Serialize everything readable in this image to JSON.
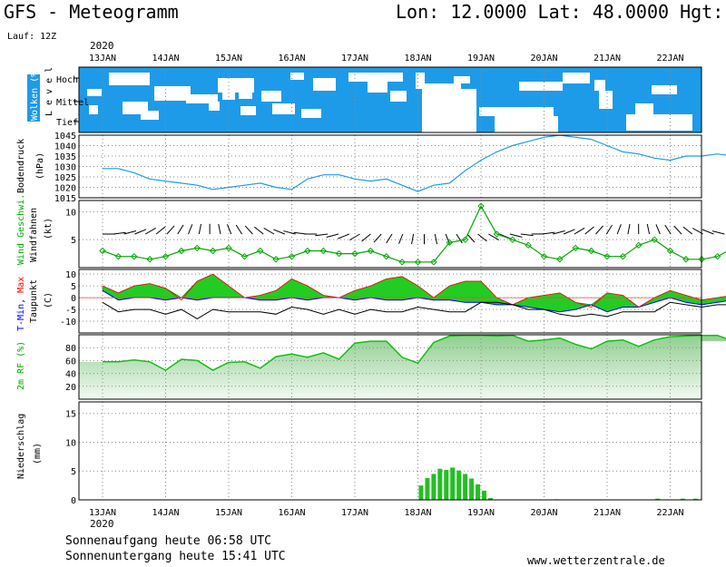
{
  "header": {
    "title": "GFS - Meteogramm",
    "location": "Lon: 12.0000 Lat: 48.0000 Hgt: 5",
    "run": "Lauf: 12Z",
    "year_top": "2020",
    "year_bottom": "2020"
  },
  "footer": {
    "sunrise": "Sonnenaufgang heute 06:58 UTC",
    "sunset": "Sonnenuntergang heute 15:41 UTC",
    "source": "www.wetterzentrale.de"
  },
  "colors": {
    "cloud": "#1e9be8",
    "pressure": "#1e9be8",
    "wind": "#00a800",
    "tmin": "#0000ff",
    "tmax": "#ff0000",
    "rh": "#10c010",
    "precip": "#22c022"
  },
  "chart_data": [
    {
      "type": "heatmap",
      "panel": "clouds",
      "ylabel": "Wolken (%)",
      "level_title": "L e v e l",
      "levels": [
        "Hoch",
        "Mittel",
        "Tief"
      ],
      "x": [
        "13JAN",
        "14JAN",
        "15JAN",
        "16JAN",
        "17JAN",
        "18JAN",
        "19JAN",
        "20JAN",
        "21JAN",
        "22JAN"
      ]
    },
    {
      "type": "line",
      "panel": "pressure",
      "ylabel": "Bodendruck",
      "unit": "(hPa)",
      "ylim": [
        1015,
        1045
      ],
      "yticks": [
        1015,
        1020,
        1025,
        1030,
        1035,
        1040,
        1045
      ],
      "x_days": [
        0,
        0.25,
        0.5,
        0.75,
        1,
        1.25,
        1.5,
        1.75,
        2,
        2.25,
        2.5,
        2.75,
        3,
        3.25,
        3.5,
        3.75,
        4,
        4.25,
        4.5,
        4.75,
        5,
        5.25,
        5.5,
        5.75,
        6,
        6.25,
        6.5,
        6.75,
        7,
        7.25,
        7.5,
        7.75,
        8,
        8.25,
        8.5,
        8.75,
        9,
        9.25,
        9.5,
        9.75,
        10
      ],
      "values": [
        1029,
        1029,
        1027,
        1024,
        1023,
        1022,
        1021,
        1019,
        1020,
        1021,
        1022,
        1020,
        1019,
        1024,
        1026,
        1026,
        1024,
        1023,
        1024,
        1021,
        1018,
        1021,
        1022,
        1028,
        1033,
        1037,
        1040,
        1042,
        1044,
        1045,
        1044,
        1043,
        1040,
        1037,
        1036,
        1034,
        1033,
        1035,
        1035,
        1036,
        1035
      ]
    },
    {
      "type": "line",
      "panel": "wind",
      "ylabel": "Wind Geschwi.",
      "ylabel2": "Windfahnen",
      "unit": "(kt)",
      "ylim": [
        0,
        12
      ],
      "yticks": [
        5,
        10
      ],
      "x_days": [
        0,
        0.25,
        0.5,
        0.75,
        1,
        1.25,
        1.5,
        1.75,
        2,
        2.25,
        2.5,
        2.75,
        3,
        3.25,
        3.5,
        3.75,
        4,
        4.25,
        4.5,
        4.75,
        5,
        5.25,
        5.5,
        5.75,
        6,
        6.25,
        6.5,
        6.75,
        7,
        7.25,
        7.5,
        7.75,
        8,
        8.25,
        8.5,
        8.75,
        9,
        9.25,
        9.5,
        9.75,
        10
      ],
      "values": [
        3,
        2,
        2,
        1.5,
        2,
        3,
        3.5,
        3,
        3.5,
        2,
        3,
        1.5,
        2,
        3,
        3,
        2.5,
        2.5,
        3,
        2,
        1,
        1,
        1,
        4.5,
        5,
        11,
        6,
        5,
        4,
        2,
        1.5,
        3.5,
        3,
        2,
        2,
        4,
        5,
        3,
        1.5,
        1.5,
        2,
        3.5
      ]
    },
    {
      "type": "area",
      "panel": "temperature",
      "ylabel_parts": [
        "T-Min",
        ", ",
        "Max"
      ],
      "ylabel2": "Taupunkt",
      "unit": "(C)",
      "ylim": [
        -15,
        12
      ],
      "yticks": [
        -10,
        -5,
        0,
        5,
        10
      ],
      "x_days": [
        0,
        0.25,
        0.5,
        0.75,
        1,
        1.25,
        1.5,
        1.75,
        2,
        2.25,
        2.5,
        2.75,
        3,
        3.25,
        3.5,
        3.75,
        4,
        4.25,
        4.5,
        4.75,
        5,
        5.25,
        5.5,
        5.75,
        6,
        6.25,
        6.5,
        6.75,
        7,
        7.25,
        7.5,
        7.75,
        8,
        8.25,
        8.5,
        8.75,
        9,
        9.25,
        9.5,
        9.75,
        10
      ],
      "series": [
        {
          "name": "T-Min",
          "values": [
            3,
            -1,
            0,
            0,
            -1,
            0,
            -1,
            0,
            0,
            0,
            -1,
            -1,
            0,
            -1,
            0,
            0,
            -1,
            0,
            -1,
            -1,
            0,
            -1,
            -1,
            -2,
            -2,
            -3,
            -3,
            -4,
            -5,
            -6,
            -5,
            -3,
            -6,
            -4,
            -4,
            -2,
            0,
            -2,
            -3,
            -2,
            -1
          ]
        },
        {
          "name": "Max",
          "values": [
            5,
            2,
            5,
            6,
            4,
            -1,
            7,
            10,
            5,
            0,
            1,
            3,
            8,
            5,
            1,
            0,
            3,
            5,
            8,
            9,
            5,
            0,
            5,
            7,
            7,
            0,
            -3,
            0,
            1,
            2,
            -2,
            -4,
            2,
            1,
            -4,
            0,
            3,
            1,
            -1,
            0,
            1
          ]
        },
        {
          "name": "Taupunkt",
          "values": [
            -2,
            -6,
            -5,
            -5,
            -7,
            -5,
            -9,
            -5,
            -6,
            -6,
            -6,
            -7,
            -4,
            -5,
            -7,
            -5,
            -7,
            -5,
            -6,
            -6,
            -4,
            -5,
            -6,
            -6,
            -2,
            -2,
            -3,
            -5,
            -5,
            -7,
            -8,
            -7,
            -8,
            -6,
            -6,
            -6,
            -2,
            -3,
            -4,
            -3,
            -3
          ]
        }
      ]
    },
    {
      "type": "area",
      "panel": "humidity",
      "ylabel": "2m RF (%)",
      "ylim": [
        0,
        100
      ],
      "yticks": [
        20,
        40,
        60,
        80
      ],
      "x_days": [
        0,
        0.25,
        0.5,
        0.75,
        1,
        1.25,
        1.5,
        1.75,
        2,
        2.25,
        2.5,
        2.75,
        3,
        3.25,
        3.5,
        3.75,
        4,
        4.25,
        4.5,
        4.75,
        5,
        5.25,
        5.5,
        5.75,
        6,
        6.25,
        6.5,
        6.75,
        7,
        7.25,
        7.5,
        7.75,
        8,
        8.25,
        8.5,
        8.75,
        9,
        9.25,
        9.5,
        9.75,
        10
      ],
      "values": [
        58,
        58,
        61,
        58,
        45,
        62,
        60,
        45,
        57,
        58,
        48,
        66,
        70,
        65,
        72,
        62,
        87,
        90,
        90,
        65,
        56,
        88,
        98,
        99,
        99,
        98,
        99,
        90,
        92,
        95,
        85,
        78,
        90,
        92,
        82,
        92,
        97,
        98,
        99,
        99,
        90
      ]
    },
    {
      "type": "bar",
      "panel": "precipitation",
      "ylabel": "Niederschlag",
      "unit": "(mm)",
      "ylim": [
        0,
        17
      ],
      "yticks": [
        0,
        5,
        10,
        15
      ],
      "x_days": [
        5.05,
        5.15,
        5.25,
        5.35,
        5.45,
        5.55,
        5.65,
        5.75,
        5.85,
        5.95,
        6.05,
        6.15,
        7.2,
        8.8,
        9.2,
        9.4
      ],
      "values": [
        2.5,
        3.8,
        4.5,
        5.4,
        5.2,
        5.6,
        5.1,
        4.5,
        3.7,
        2.7,
        1.6,
        0.3,
        0.1,
        0.2,
        0.2,
        0.2
      ]
    }
  ]
}
